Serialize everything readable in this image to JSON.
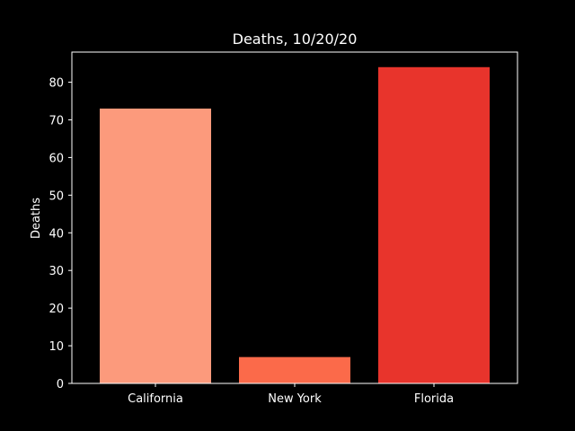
{
  "chart_data": {
    "type": "bar",
    "title": "Deaths, 10/20/20",
    "xlabel": "",
    "ylabel": "Deaths",
    "categories": [
      "California",
      "New York",
      "Florida"
    ],
    "values": [
      73,
      7,
      84
    ],
    "bar_colors": [
      "#fc9a7c",
      "#fb6a4a",
      "#e8342c"
    ],
    "ylim": [
      0,
      88
    ],
    "yticks": [
      0,
      10,
      20,
      30,
      40,
      50,
      60,
      70,
      80
    ],
    "grid": false,
    "background": "#000000",
    "foreground": "#ffffff"
  }
}
